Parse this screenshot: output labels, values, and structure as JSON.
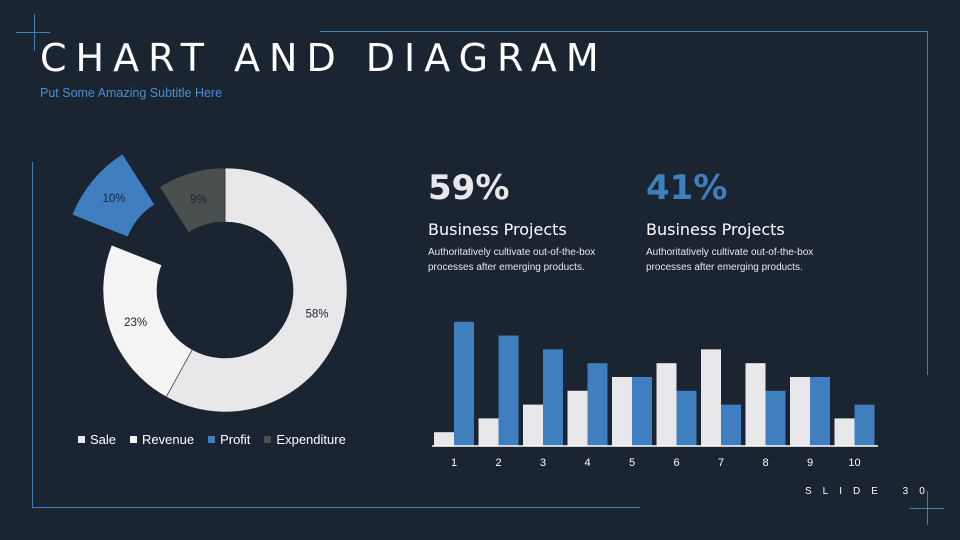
{
  "slide": {
    "title": "CHART AND DIAGRAM",
    "subtitle": "Put Some Amazing Subtitle Here",
    "slide_number": "SLIDE 30"
  },
  "stats": [
    {
      "value": "59%",
      "heading": "Business Projects",
      "description": "Authoritatively cultivate out-of-the-box processes after emerging products.",
      "color": "#e8e8ea"
    },
    {
      "value": "41%",
      "heading": "Business Projects",
      "description": "Authoritatively cultivate out-of-the-box processes after emerging products.",
      "color": "#3f7fc0"
    }
  ],
  "colors": {
    "background": "#1b2431",
    "accent": "#3f7fc0",
    "light": "#e8e8ea",
    "white": "#f4f4f5",
    "dark_gray": "#4a504f"
  },
  "chart_data": [
    {
      "type": "pie",
      "style": "donut, exploded slices",
      "legend_position": "bottom",
      "slices": [
        {
          "label": "Sale",
          "value": 58,
          "text": "58%",
          "color": "#e8e8ea",
          "exploded": false
        },
        {
          "label": "Revenue",
          "value": 23,
          "text": "23%",
          "color": "#f4f4f5",
          "exploded": true
        },
        {
          "label": "Profit",
          "value": 10,
          "text": "10%",
          "color": "#3f7fc0",
          "exploded": true
        },
        {
          "label": "Expenditure",
          "value": 9,
          "text": "9%",
          "color": "#4a504f",
          "exploded": false
        }
      ]
    },
    {
      "type": "bar",
      "categories": [
        "1",
        "2",
        "3",
        "4",
        "5",
        "6",
        "7",
        "8",
        "9",
        "10"
      ],
      "series": [
        {
          "values": [
            1,
            2,
            3,
            4,
            5,
            6,
            7,
            6,
            5,
            2
          ],
          "color": "#e8e8ea"
        },
        {
          "values": [
            9,
            8,
            7,
            6,
            5,
            4,
            3,
            4,
            5,
            3
          ],
          "color": "#3f7fc0"
        }
      ],
      "ylim": [
        0,
        9.2
      ],
      "grid": false
    }
  ]
}
